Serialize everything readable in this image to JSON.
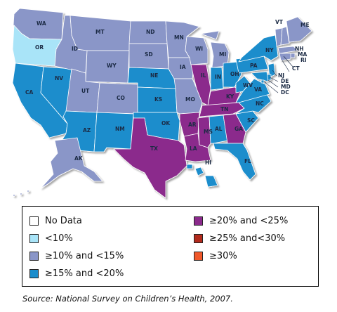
{
  "map": {
    "colors": {
      "no_data": "#ffffff",
      "lt10": "#a9e4f8",
      "c10_15": "#8a96c8",
      "c15_20": "#1b8dcc",
      "c20_25": "#8b2a8c",
      "c25_30": "#b22a1c",
      "ge30": "#f0582a"
    },
    "states": [
      {
        "abbr": "WA",
        "category": "c10_15"
      },
      {
        "abbr": "OR",
        "category": "lt10"
      },
      {
        "abbr": "CA",
        "category": "c15_20"
      },
      {
        "abbr": "NV",
        "category": "c15_20"
      },
      {
        "abbr": "ID",
        "category": "c10_15"
      },
      {
        "abbr": "MT",
        "category": "c10_15"
      },
      {
        "abbr": "WY",
        "category": "c10_15"
      },
      {
        "abbr": "UT",
        "category": "c10_15"
      },
      {
        "abbr": "AZ",
        "category": "c15_20"
      },
      {
        "abbr": "CO",
        "category": "c10_15"
      },
      {
        "abbr": "NM",
        "category": "c15_20"
      },
      {
        "abbr": "ND",
        "category": "c10_15"
      },
      {
        "abbr": "SD",
        "category": "c10_15"
      },
      {
        "abbr": "NE",
        "category": "c15_20"
      },
      {
        "abbr": "KS",
        "category": "c15_20"
      },
      {
        "abbr": "OK",
        "category": "c15_20"
      },
      {
        "abbr": "TX",
        "category": "c20_25"
      },
      {
        "abbr": "MN",
        "category": "c10_15"
      },
      {
        "abbr": "IA",
        "category": "c10_15"
      },
      {
        "abbr": "MO",
        "category": "c10_15"
      },
      {
        "abbr": "AR",
        "category": "c20_25"
      },
      {
        "abbr": "LA",
        "category": "c20_25"
      },
      {
        "abbr": "WI",
        "category": "c10_15"
      },
      {
        "abbr": "IL",
        "category": "c20_25"
      },
      {
        "abbr": "MI",
        "category": "c10_15"
      },
      {
        "abbr": "IN",
        "category": "c15_20"
      },
      {
        "abbr": "OH",
        "category": "c15_20"
      },
      {
        "abbr": "KY",
        "category": "c20_25"
      },
      {
        "abbr": "TN",
        "category": "c20_25"
      },
      {
        "abbr": "MS",
        "category": "c20_25"
      },
      {
        "abbr": "AL",
        "category": "c15_20"
      },
      {
        "abbr": "GA",
        "category": "c20_25"
      },
      {
        "abbr": "FL",
        "category": "c15_20"
      },
      {
        "abbr": "SC",
        "category": "c15_20"
      },
      {
        "abbr": "NC",
        "category": "c15_20"
      },
      {
        "abbr": "VA",
        "category": "c15_20"
      },
      {
        "abbr": "WV",
        "category": "c15_20"
      },
      {
        "abbr": "PA",
        "category": "c15_20"
      },
      {
        "abbr": "NY",
        "category": "c15_20"
      },
      {
        "abbr": "VT",
        "category": "c10_15"
      },
      {
        "abbr": "NH",
        "category": "c10_15"
      },
      {
        "abbr": "ME",
        "category": "c10_15"
      },
      {
        "abbr": "MA",
        "category": "c10_15"
      },
      {
        "abbr": "RI",
        "category": "c10_15"
      },
      {
        "abbr": "CT",
        "category": "c10_15"
      },
      {
        "abbr": "NJ",
        "category": "c15_20"
      },
      {
        "abbr": "DE",
        "category": "c15_20"
      },
      {
        "abbr": "MD",
        "category": "c15_20"
      },
      {
        "abbr": "DC",
        "category": "c15_20"
      },
      {
        "abbr": "AK",
        "category": "c10_15"
      },
      {
        "abbr": "HI",
        "category": "c15_20"
      }
    ]
  },
  "legend": {
    "items": [
      {
        "key": "no_data",
        "label": "No Data"
      },
      {
        "key": "lt10",
        "label": "<10%"
      },
      {
        "key": "c10_15",
        "label": "≥10% and <15%"
      },
      {
        "key": "c15_20",
        "label": "≥15% and <20%"
      },
      {
        "key": "c20_25",
        "label": "≥20% and <25%"
      },
      {
        "key": "c25_30",
        "label": "≥25% and<30%"
      },
      {
        "key": "ge30",
        "label": "≥30%"
      }
    ]
  },
  "source": "Source: National Survey on Children’s Health, 2007."
}
